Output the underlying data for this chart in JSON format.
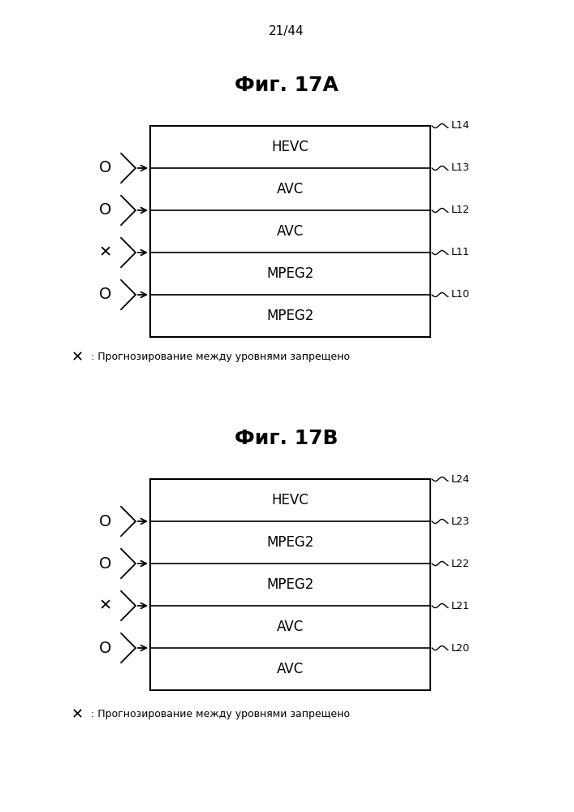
{
  "page_label": "21/44",
  "fig_A_title": "Фиг. 17А",
  "fig_B_title": "Фиг. 17В",
  "fig_A_layers": [
    "HEVC",
    "AVC",
    "AVC",
    "MPEG2",
    "MPEG2"
  ],
  "fig_A_labels": [
    "L14",
    "L13",
    "L12",
    "L11",
    "L10"
  ],
  "fig_A_symbols": [
    "O",
    "O",
    "X",
    "O",
    null
  ],
  "fig_A_note": "X : Прогнозирование между уровнями запрещено",
  "fig_B_layers": [
    "HEVC",
    "MPEG2",
    "MPEG2",
    "AVC",
    "AVC"
  ],
  "fig_B_labels": [
    "L24",
    "L23",
    "L22",
    "L21",
    "L20"
  ],
  "fig_B_symbols": [
    "O",
    "O",
    "X",
    "O",
    null
  ],
  "fig_B_note": "X : Прогнозирование между уровнями запрещено",
  "bg_color": "#ffffff"
}
